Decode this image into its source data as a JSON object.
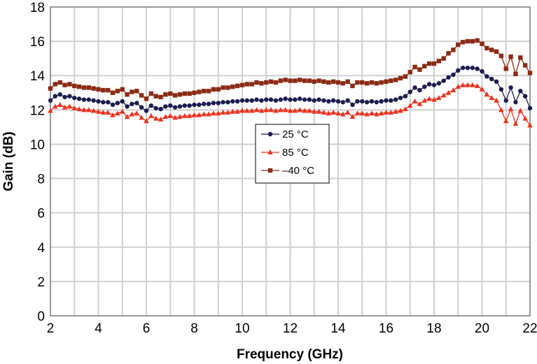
{
  "chart_data": {
    "type": "line",
    "title": "",
    "xlabel": "Frequency (GHz)",
    "ylabel": "Gain (dB)",
    "xlim": [
      2,
      22
    ],
    "ylim": [
      0,
      18
    ],
    "xticks": [
      2,
      4,
      6,
      8,
      10,
      12,
      14,
      16,
      18,
      20,
      22
    ],
    "yticks": [
      0,
      2,
      4,
      6,
      8,
      10,
      12,
      14,
      16,
      18
    ],
    "grid": true,
    "legend_position": "center",
    "x": [
      2.0,
      2.2,
      2.4,
      2.6,
      2.8,
      3.0,
      3.2,
      3.4,
      3.6,
      3.8,
      4.0,
      4.2,
      4.4,
      4.6,
      4.8,
      5.0,
      5.2,
      5.4,
      5.6,
      5.8,
      6.0,
      6.2,
      6.4,
      6.6,
      6.8,
      7.0,
      7.2,
      7.4,
      7.6,
      7.8,
      8.0,
      8.2,
      8.4,
      8.6,
      8.8,
      9.0,
      9.2,
      9.4,
      9.6,
      9.8,
      10.0,
      10.2,
      10.4,
      10.6,
      10.8,
      11.0,
      11.2,
      11.4,
      11.6,
      11.8,
      12.0,
      12.2,
      12.4,
      12.6,
      12.8,
      13.0,
      13.2,
      13.4,
      13.6,
      13.8,
      14.0,
      14.2,
      14.4,
      14.6,
      14.8,
      15.0,
      15.2,
      15.4,
      15.6,
      15.8,
      16.0,
      16.2,
      16.4,
      16.6,
      16.8,
      17.0,
      17.2,
      17.4,
      17.6,
      17.8,
      18.0,
      18.2,
      18.4,
      18.6,
      18.8,
      19.0,
      19.2,
      19.4,
      19.6,
      19.8,
      20.0,
      20.2,
      20.4,
      20.6,
      20.8,
      21.0,
      21.2,
      21.4,
      21.6,
      21.8,
      22.0
    ],
    "series": [
      {
        "name": "25 °C",
        "color": "#1c1c50",
        "marker": "circle",
        "values": [
          12.55,
          12.8,
          12.9,
          12.75,
          12.8,
          12.7,
          12.65,
          12.6,
          12.6,
          12.55,
          12.5,
          12.45,
          12.45,
          12.3,
          12.4,
          12.5,
          12.2,
          12.35,
          12.4,
          12.15,
          11.95,
          12.25,
          12.1,
          12.05,
          12.2,
          12.25,
          12.15,
          12.2,
          12.25,
          12.25,
          12.3,
          12.3,
          12.35,
          12.35,
          12.4,
          12.4,
          12.45,
          12.45,
          12.5,
          12.5,
          12.55,
          12.55,
          12.55,
          12.6,
          12.55,
          12.6,
          12.6,
          12.55,
          12.6,
          12.65,
          12.6,
          12.6,
          12.65,
          12.6,
          12.6,
          12.55,
          12.6,
          12.55,
          12.5,
          12.55,
          12.5,
          12.45,
          12.55,
          12.3,
          12.5,
          12.5,
          12.45,
          12.5,
          12.45,
          12.5,
          12.55,
          12.55,
          12.6,
          12.7,
          12.8,
          13.05,
          13.3,
          13.15,
          13.35,
          13.5,
          13.45,
          13.55,
          13.7,
          13.9,
          14.05,
          14.3,
          14.45,
          14.45,
          14.45,
          14.4,
          14.25,
          13.95,
          13.8,
          13.65,
          13.2,
          12.55,
          13.3,
          12.45,
          13.1,
          12.8,
          12.1
        ]
      },
      {
        "name": "85 °C",
        "color": "#e8321e",
        "marker": "triangle",
        "values": [
          11.95,
          12.2,
          12.3,
          12.15,
          12.2,
          12.1,
          12.05,
          12.0,
          12.0,
          11.95,
          11.9,
          11.85,
          11.85,
          11.7,
          11.8,
          11.9,
          11.6,
          11.75,
          11.8,
          11.55,
          11.35,
          11.65,
          11.5,
          11.45,
          11.6,
          11.65,
          11.55,
          11.6,
          11.65,
          11.65,
          11.7,
          11.7,
          11.75,
          11.75,
          11.8,
          11.8,
          11.85,
          11.85,
          11.9,
          11.9,
          11.95,
          11.95,
          11.95,
          12.0,
          11.95,
          12.0,
          12.0,
          11.95,
          12.0,
          12.0,
          11.95,
          11.95,
          12.0,
          11.95,
          11.95,
          11.9,
          11.9,
          11.85,
          11.8,
          11.85,
          11.8,
          11.75,
          11.85,
          11.6,
          11.8,
          11.8,
          11.75,
          11.8,
          11.75,
          11.8,
          11.85,
          11.85,
          11.9,
          11.95,
          12.05,
          12.25,
          12.5,
          12.35,
          12.55,
          12.65,
          12.6,
          12.7,
          12.85,
          13.0,
          13.15,
          13.35,
          13.45,
          13.45,
          13.45,
          13.4,
          13.2,
          12.9,
          12.7,
          12.55,
          12.0,
          11.35,
          12.05,
          11.2,
          11.95,
          11.5,
          11.1
        ]
      },
      {
        "name": "–40 °C",
        "color": "#8b2a14",
        "marker": "square",
        "values": [
          13.25,
          13.5,
          13.6,
          13.45,
          13.5,
          13.4,
          13.35,
          13.3,
          13.3,
          13.25,
          13.2,
          13.15,
          13.15,
          13.0,
          13.1,
          13.2,
          12.9,
          13.05,
          13.1,
          12.85,
          12.65,
          12.95,
          12.8,
          12.75,
          12.9,
          12.95,
          12.85,
          12.9,
          12.95,
          12.95,
          13.0,
          13.05,
          13.1,
          13.1,
          13.2,
          13.2,
          13.3,
          13.3,
          13.35,
          13.4,
          13.45,
          13.5,
          13.5,
          13.6,
          13.55,
          13.6,
          13.65,
          13.6,
          13.7,
          13.75,
          13.7,
          13.7,
          13.75,
          13.7,
          13.7,
          13.65,
          13.7,
          13.65,
          13.6,
          13.65,
          13.6,
          13.55,
          13.65,
          13.4,
          13.6,
          13.6,
          13.55,
          13.6,
          13.55,
          13.6,
          13.65,
          13.7,
          13.75,
          13.85,
          13.95,
          14.2,
          14.5,
          14.35,
          14.55,
          14.7,
          14.7,
          14.85,
          15.0,
          15.3,
          15.5,
          15.8,
          15.95,
          16.0,
          16.0,
          16.05,
          15.85,
          15.6,
          15.5,
          15.4,
          15.15,
          14.4,
          15.1,
          14.1,
          15.05,
          14.6,
          14.15
        ]
      }
    ]
  }
}
